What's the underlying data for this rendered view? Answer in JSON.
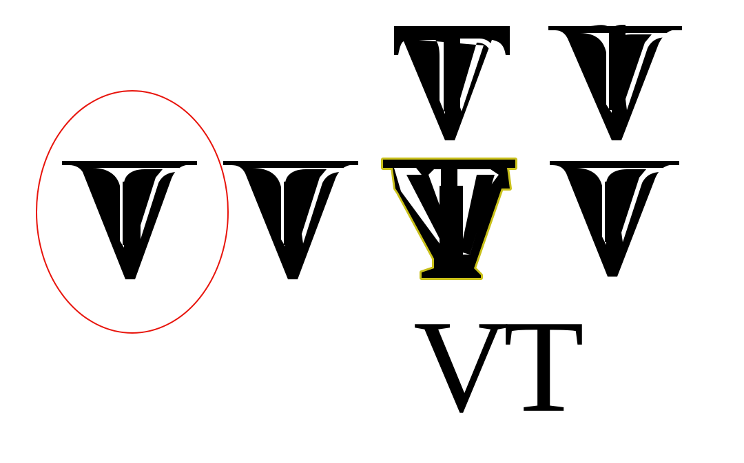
{
  "title": "",
  "sketches": [
    {
      "id": "monogram-selected",
      "variant": "circled",
      "highlight": "#e8140c"
    },
    {
      "id": "monogram-plain-left",
      "variant": "plain"
    },
    {
      "id": "monogram-active-outline",
      "variant": "outlined",
      "highlight": "#c9c01a"
    },
    {
      "id": "monogram-plain-right",
      "variant": "plain"
    },
    {
      "id": "monogram-top-tee",
      "variant": "tee"
    },
    {
      "id": "monogram-top-swash",
      "variant": "swash"
    }
  ],
  "reference_text": "VT",
  "colors": {
    "ink": "#000000",
    "background": "#ffffff",
    "selection_circle": "#e8140c",
    "active_outline": "#c9c01a"
  }
}
